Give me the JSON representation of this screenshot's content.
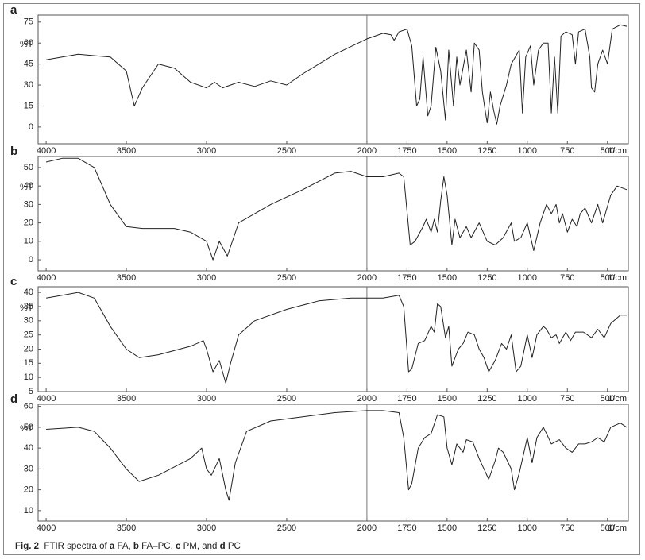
{
  "chart_data": [
    {
      "type": "line",
      "label": "a",
      "ylabel": "%T",
      "xlabel": "1/cm",
      "color": "#222222",
      "xdivider": 2000,
      "xlim": [
        4050,
        370
      ],
      "xticks": [
        4000,
        3500,
        3000,
        2500,
        2000,
        1750,
        1500,
        1250,
        1000,
        750,
        500
      ],
      "ylim": [
        -12,
        80
      ],
      "yticks": [
        0,
        15,
        30,
        45,
        60,
        75
      ],
      "x": [
        4000,
        3800,
        3600,
        3500,
        3450,
        3400,
        3300,
        3200,
        3100,
        3000,
        2950,
        2900,
        2800,
        2700,
        2600,
        2500,
        2400,
        2200,
        2000,
        1900,
        1850,
        1830,
        1800,
        1750,
        1720,
        1690,
        1670,
        1650,
        1620,
        1600,
        1570,
        1540,
        1510,
        1490,
        1460,
        1440,
        1420,
        1380,
        1350,
        1330,
        1300,
        1280,
        1260,
        1250,
        1230,
        1210,
        1190,
        1170,
        1130,
        1100,
        1050,
        1030,
        1010,
        980,
        960,
        930,
        900,
        870,
        850,
        830,
        810,
        790,
        760,
        720,
        700,
        680,
        640,
        610,
        600,
        580,
        560,
        530,
        500,
        470,
        420,
        380
      ],
      "values": [
        48,
        52,
        50,
        40,
        15,
        28,
        45,
        42,
        32,
        28,
        32,
        28,
        32,
        29,
        33,
        30,
        38,
        52,
        63,
        67,
        66,
        62,
        68,
        70,
        58,
        15,
        20,
        50,
        8,
        15,
        57,
        40,
        5,
        55,
        15,
        50,
        30,
        55,
        25,
        60,
        55,
        25,
        10,
        3,
        25,
        12,
        2,
        15,
        30,
        45,
        55,
        10,
        50,
        58,
        30,
        55,
        60,
        60,
        10,
        50,
        10,
        65,
        68,
        66,
        45,
        68,
        70,
        50,
        28,
        25,
        45,
        55,
        45,
        70,
        73,
        72
      ]
    },
    {
      "type": "line",
      "label": "b",
      "ylabel": "%T",
      "xlabel": "1/cm",
      "color": "#222222",
      "xdivider": 2000,
      "xlim": [
        4050,
        370
      ],
      "xticks": [
        4000,
        3500,
        3000,
        2500,
        2000,
        1750,
        1500,
        1250,
        1000,
        750,
        500
      ],
      "ylim": [
        -6,
        56
      ],
      "yticks": [
        0,
        10,
        20,
        30,
        40,
        50
      ],
      "x": [
        4000,
        3900,
        3800,
        3700,
        3600,
        3500,
        3400,
        3200,
        3100,
        3000,
        2960,
        2920,
        2870,
        2800,
        2600,
        2400,
        2200,
        2100,
        2000,
        1900,
        1800,
        1770,
        1730,
        1700,
        1650,
        1630,
        1600,
        1580,
        1560,
        1540,
        1520,
        1500,
        1470,
        1450,
        1420,
        1380,
        1350,
        1300,
        1250,
        1200,
        1150,
        1100,
        1080,
        1040,
        1000,
        960,
        920,
        880,
        850,
        820,
        800,
        780,
        750,
        720,
        690,
        670,
        640,
        600,
        560,
        530,
        480,
        440,
        380
      ],
      "values": [
        53,
        55,
        55,
        50,
        30,
        18,
        17,
        17,
        15,
        10,
        0,
        10,
        2,
        20,
        30,
        38,
        47,
        48,
        45,
        45,
        47,
        45,
        8,
        10,
        18,
        22,
        15,
        22,
        15,
        32,
        45,
        35,
        8,
        22,
        12,
        18,
        12,
        20,
        10,
        8,
        12,
        20,
        10,
        12,
        20,
        5,
        20,
        30,
        25,
        30,
        20,
        25,
        15,
        22,
        18,
        25,
        28,
        20,
        30,
        20,
        35,
        40,
        38
      ]
    },
    {
      "type": "line",
      "label": "c",
      "ylabel": "%T",
      "xlabel": "1/cm",
      "color": "#222222",
      "xdivider": 2000,
      "xlim": [
        4050,
        370
      ],
      "xticks": [
        4000,
        3500,
        3000,
        2500,
        2000,
        1750,
        1500,
        1250,
        1000,
        750,
        500
      ],
      "ylim": [
        5,
        42
      ],
      "yticks": [
        5,
        10,
        15,
        20,
        25,
        30,
        35,
        40
      ],
      "x": [
        4000,
        3900,
        3800,
        3700,
        3600,
        3500,
        3420,
        3300,
        3100,
        3020,
        3000,
        2960,
        2920,
        2880,
        2850,
        2800,
        2700,
        2500,
        2300,
        2100,
        2000,
        1900,
        1800,
        1770,
        1740,
        1720,
        1680,
        1640,
        1600,
        1580,
        1560,
        1540,
        1510,
        1490,
        1470,
        1430,
        1400,
        1370,
        1330,
        1300,
        1270,
        1240,
        1200,
        1160,
        1130,
        1100,
        1070,
        1040,
        1000,
        970,
        940,
        900,
        880,
        850,
        820,
        800,
        760,
        730,
        700,
        650,
        600,
        560,
        520,
        480,
        420,
        380
      ],
      "values": [
        38,
        39,
        40,
        38,
        28,
        20,
        17,
        18,
        21,
        23,
        20,
        12,
        16,
        8,
        15,
        25,
        30,
        34,
        37,
        38,
        38,
        38,
        39,
        35,
        12,
        13,
        22,
        23,
        28,
        26,
        36,
        35,
        24,
        28,
        14,
        20,
        22,
        26,
        25,
        20,
        17,
        12,
        16,
        22,
        20,
        25,
        12,
        14,
        25,
        17,
        25,
        28,
        27,
        24,
        25,
        22,
        26,
        23,
        26,
        26,
        24,
        27,
        24,
        29,
        32,
        32
      ]
    },
    {
      "type": "line",
      "label": "d",
      "ylabel": "%T",
      "xlabel": "1/cm",
      "color": "#222222",
      "xdivider": 2000,
      "xlim": [
        4050,
        370
      ],
      "xticks": [
        4000,
        3500,
        3000,
        2500,
        2000,
        1750,
        1500,
        1250,
        1000,
        750,
        500
      ],
      "ylim": [
        5,
        61
      ],
      "yticks": [
        10,
        20,
        30,
        40,
        50,
        60
      ],
      "x": [
        4000,
        3800,
        3700,
        3600,
        3500,
        3420,
        3300,
        3100,
        3030,
        3000,
        2970,
        2920,
        2880,
        2860,
        2820,
        2750,
        2600,
        2400,
        2200,
        2000,
        1900,
        1800,
        1770,
        1740,
        1720,
        1680,
        1640,
        1600,
        1560,
        1520,
        1500,
        1470,
        1440,
        1400,
        1380,
        1340,
        1300,
        1270,
        1240,
        1200,
        1180,
        1150,
        1100,
        1080,
        1050,
        1000,
        970,
        940,
        900,
        880,
        850,
        800,
        760,
        720,
        680,
        640,
        600,
        560,
        520,
        480,
        420,
        380
      ],
      "values": [
        49,
        50,
        48,
        40,
        30,
        24,
        27,
        35,
        40,
        30,
        27,
        35,
        20,
        15,
        33,
        48,
        53,
        55,
        57,
        58,
        58,
        57,
        45,
        20,
        23,
        40,
        45,
        47,
        56,
        55,
        40,
        32,
        42,
        38,
        44,
        43,
        35,
        30,
        25,
        34,
        40,
        38,
        30,
        20,
        28,
        45,
        33,
        45,
        50,
        47,
        42,
        44,
        40,
        38,
        42,
        42,
        43,
        45,
        43,
        50,
        52,
        50
      ]
    }
  ],
  "caption": [
    {
      "text": "Fig. 2",
      "bold": true
    },
    {
      "text": "  FTIR spectra of ",
      "bold": false
    },
    {
      "text": "a",
      "bold": true
    },
    {
      "text": " FA, ",
      "bold": false
    },
    {
      "text": "b",
      "bold": true
    },
    {
      "text": " FA–PC, ",
      "bold": false
    },
    {
      "text": "c",
      "bold": true
    },
    {
      "text": " PM, and ",
      "bold": false
    },
    {
      "text": "d",
      "bold": true
    },
    {
      "text": " PC",
      "bold": false
    }
  ]
}
